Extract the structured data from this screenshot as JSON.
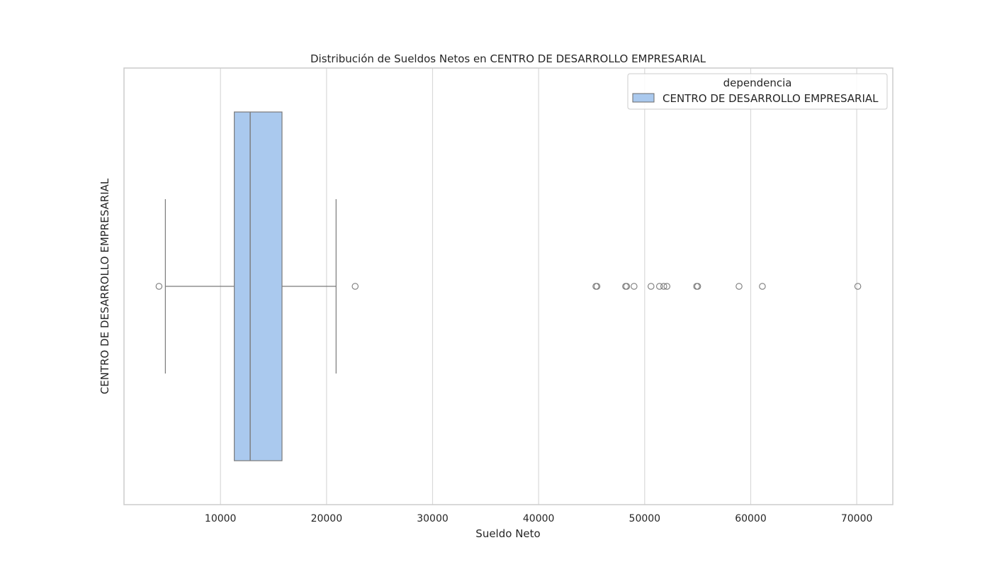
{
  "chart_data": {
    "type": "boxplot",
    "orientation": "horizontal",
    "title": "Distribución de Sueldos Netos en CENTRO DE DESARROLLO EMPRESARIAL",
    "xlabel": "Sueldo Neto",
    "ylabel": "CENTRO DE DESARROLLO EMPRESARIAL",
    "xlim": [
      900,
      73400
    ],
    "xticks": [
      10000,
      20000,
      30000,
      40000,
      50000,
      60000,
      70000
    ],
    "grid": true,
    "legend": {
      "title": "dependencia",
      "placement": "top-right",
      "entries": [
        "CENTRO DE DESARROLLO EMPRESARIAL"
      ]
    },
    "series": [
      {
        "name": "CENTRO DE DESARROLLO EMPRESARIAL",
        "color": "#aac9ee",
        "whisker_low": 4800,
        "q1": 11300,
        "median": 12800,
        "q3": 15800,
        "whisker_high": 20900,
        "outliers": [
          4200,
          22700,
          45400,
          45500,
          48200,
          48300,
          49000,
          50600,
          51400,
          51800,
          52100,
          54900,
          55000,
          58900,
          61100,
          70100
        ]
      }
    ]
  }
}
